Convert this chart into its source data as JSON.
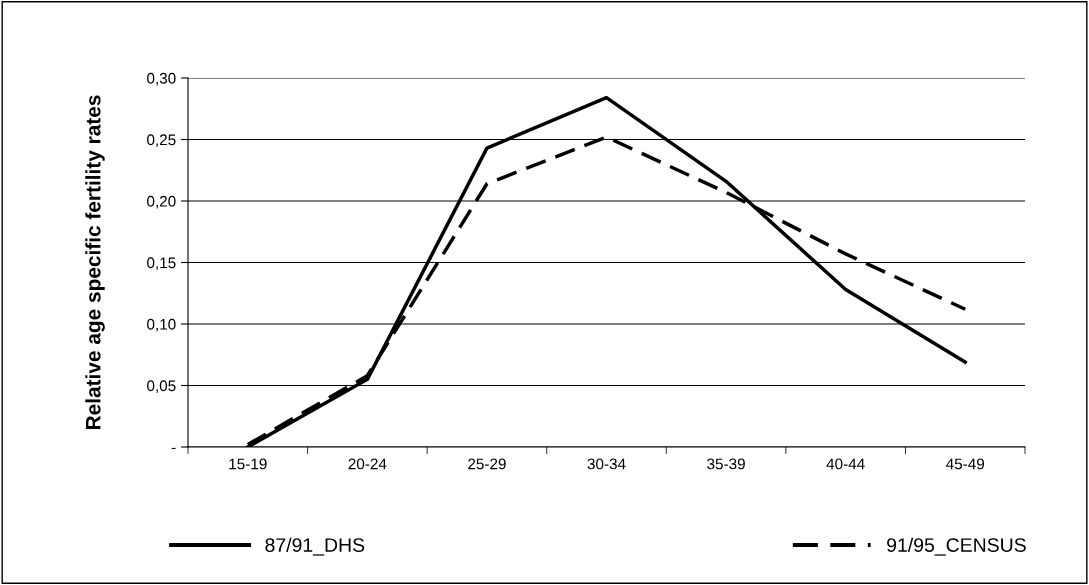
{
  "chart_data": {
    "type": "line",
    "ylabel": "Relative age specific fertility rates",
    "categories": [
      "15-19",
      "20-24",
      "25-29",
      "30-34",
      "35-39",
      "40-44",
      "45-49"
    ],
    "series": [
      {
        "name": "87/91_DHS",
        "color": "#000000",
        "line_style": "solid",
        "values": [
          0.0,
          0.055,
          0.243,
          0.284,
          0.216,
          0.128,
          0.069
        ]
      },
      {
        "name": "91/95_CENSUS",
        "color": "#000000",
        "line_style": "dashed",
        "values": [
          0.002,
          0.058,
          0.214,
          0.252,
          0.207,
          0.157,
          0.112
        ]
      }
    ],
    "ylim": [
      0,
      0.3
    ],
    "yticks": [
      {
        "value": 0,
        "label": "-"
      },
      {
        "value": 0.05,
        "label": "0,05"
      },
      {
        "value": 0.1,
        "label": "0,10"
      },
      {
        "value": 0.15,
        "label": "0,15"
      },
      {
        "value": 0.2,
        "label": "0,20"
      },
      {
        "value": 0.25,
        "label": "0,25"
      },
      {
        "value": 0.3,
        "label": "0,30"
      }
    ],
    "grid": "y",
    "legend": "bottom",
    "marker": "none"
  }
}
